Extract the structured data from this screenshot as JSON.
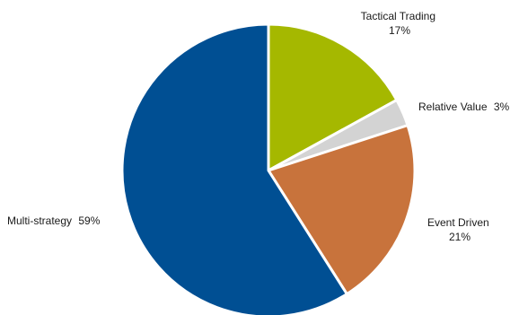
{
  "chart_data": {
    "type": "pie",
    "title": "",
    "legend": "none",
    "slices": [
      {
        "name": "Tactical Trading",
        "value": 17,
        "value_label": "17%",
        "color": "#a5b800"
      },
      {
        "name": "Relative Value",
        "value": 3,
        "value_label": "3%",
        "color": "#d3d3d3"
      },
      {
        "name": "Event Driven",
        "value": 21,
        "value_label": "21%",
        "color": "#c8733c"
      },
      {
        "name": "Multi-strategy",
        "value": 59,
        "value_label": "59%",
        "color": "#004f93"
      }
    ]
  }
}
